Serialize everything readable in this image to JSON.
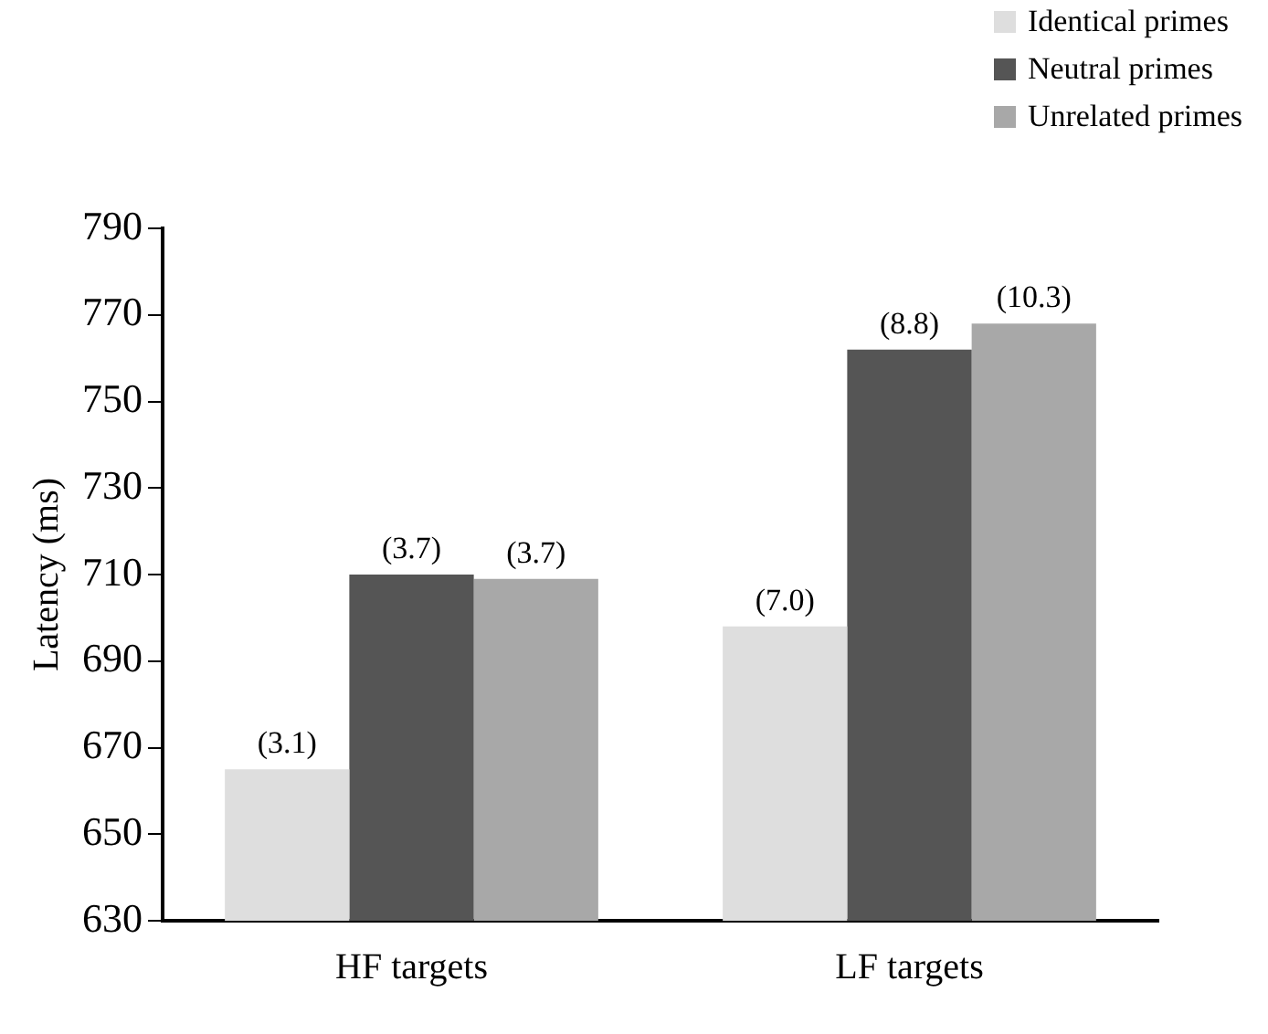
{
  "chart_data": {
    "type": "bar",
    "ylabel": "Latency (ms)",
    "categories": [
      "HF targets",
      "LF targets"
    ],
    "series": [
      {
        "name": "Identical primes",
        "color": "#dedede",
        "values": [
          665,
          698
        ]
      },
      {
        "name": "Neutral primes",
        "color": "#555555",
        "values": [
          710,
          762
        ]
      },
      {
        "name": "Unrelated primes",
        "color": "#a8a8a8",
        "values": [
          709,
          768
        ]
      }
    ],
    "annotations": [
      "(3.1)",
      "(3.7)",
      "(3.7)",
      "(7.0)",
      "(8.8)",
      "(10.3)"
    ],
    "ylim": [
      630,
      790
    ],
    "yticks": [
      630,
      650,
      670,
      690,
      710,
      730,
      750,
      770,
      790
    ],
    "grid": false,
    "legend": "top right"
  }
}
